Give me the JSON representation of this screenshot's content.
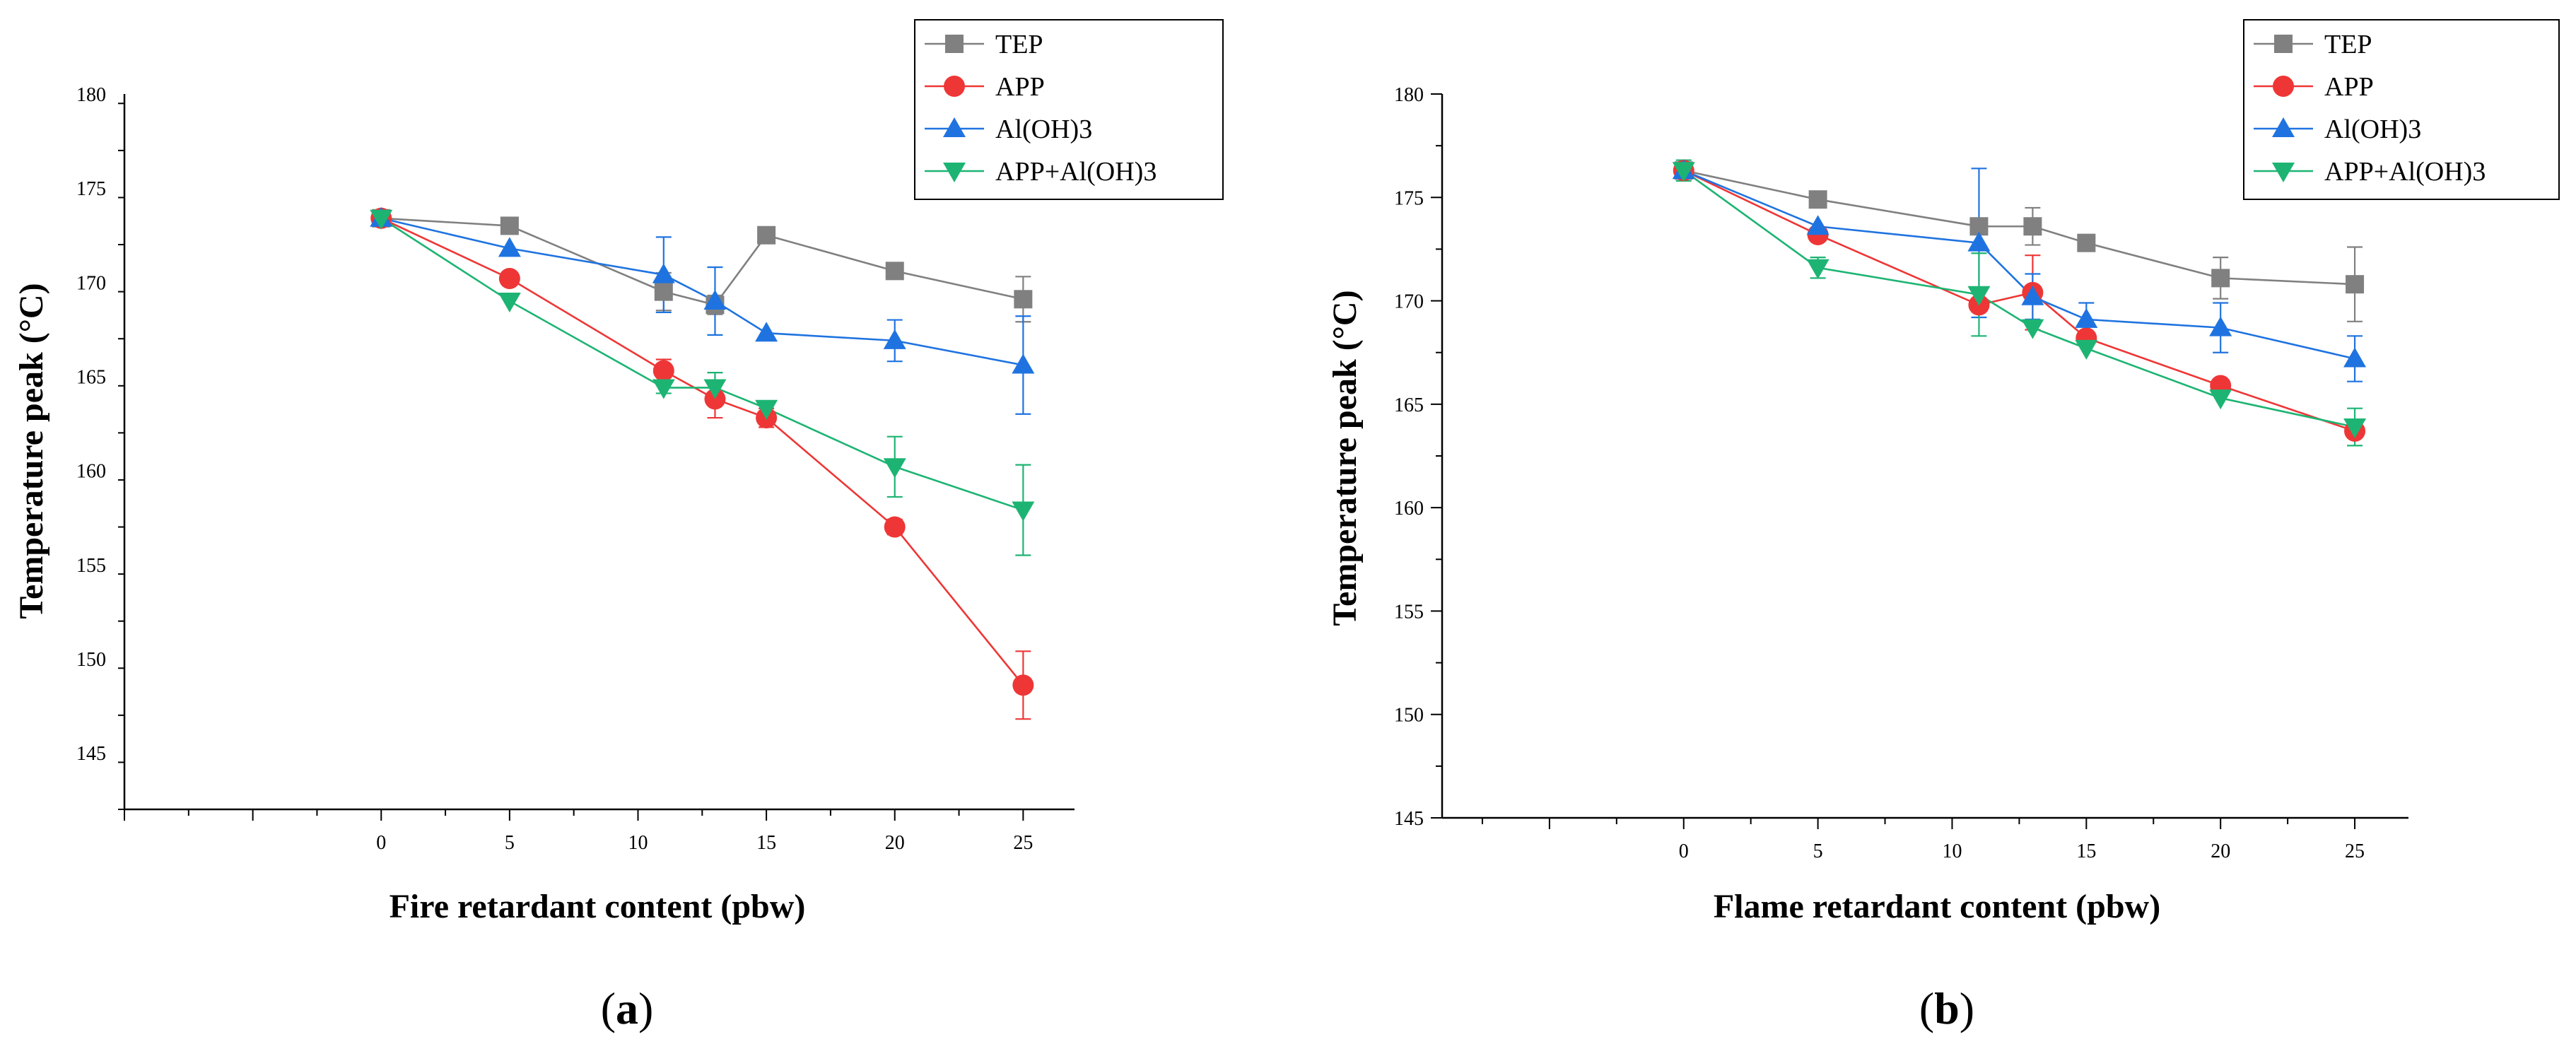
{
  "figure": {
    "panels": [
      {
        "letter": "a",
        "label_open": "(",
        "label_close": ")"
      },
      {
        "letter": "b",
        "label_open": "(",
        "label_close": ")"
      }
    ]
  },
  "series_style": [
    {
      "name": "TEP",
      "color": "#808080",
      "marker": "square"
    },
    {
      "name": "APP",
      "color": "#ee3636",
      "marker": "circle"
    },
    {
      "name": "Al(OH)3",
      "color": "#1f73e0",
      "marker": "triangle-up"
    },
    {
      "name": "APP+Al(OH)3",
      "color": "#1db473",
      "marker": "triangle-down"
    }
  ],
  "chart_data": [
    {
      "type": "line",
      "title": "",
      "xlabel": "Fire retardant content (pbw)",
      "ylabel": "Temperature peak (°C)",
      "xlim": [
        -10,
        27
      ],
      "ylim": [
        142,
        180
      ],
      "xticks": [
        0,
        5,
        10,
        15,
        20,
        25
      ],
      "yticks": [
        145,
        150,
        155,
        160,
        165,
        170,
        175,
        180
      ],
      "x": [
        0,
        5,
        11,
        13,
        15,
        20,
        25
      ],
      "legend_position": "top-right",
      "series": [
        {
          "name": "TEP",
          "values": [
            173.4,
            173.0,
            169.5,
            168.8,
            172.5,
            170.6,
            169.1
          ],
          "errors": [
            0,
            0,
            1.0,
            0.5,
            0,
            0,
            1.2
          ]
        },
        {
          "name": "APP",
          "values": [
            173.4,
            170.2,
            165.3,
            163.8,
            162.8,
            157.0,
            148.6
          ],
          "errors": [
            0,
            0,
            0.6,
            1.0,
            0.5,
            0.4,
            1.8
          ]
        },
        {
          "name": "Al(OH)3",
          "values": [
            173.4,
            171.8,
            170.4,
            169.0,
            167.3,
            166.9,
            165.6
          ],
          "errors": [
            0,
            0,
            2.0,
            1.8,
            0,
            1.1,
            2.6
          ]
        },
        {
          "name": "APP+Al(OH)3",
          "values": [
            173.4,
            169.0,
            164.4,
            164.4,
            163.3,
            160.2,
            157.9
          ],
          "errors": [
            0,
            0,
            0.3,
            0.8,
            0,
            1.6,
            2.4
          ]
        }
      ]
    },
    {
      "type": "line",
      "title": "",
      "xlabel": "Flame retardant content (pbw)",
      "ylabel": "Temperature peak (°C)",
      "xlim": [
        -9,
        27
      ],
      "ylim": [
        145,
        180
      ],
      "xticks": [
        0,
        5,
        10,
        15,
        20,
        25
      ],
      "yticks": [
        145,
        150,
        155,
        160,
        165,
        170,
        175,
        180
      ],
      "x": [
        0,
        5,
        11,
        13,
        15,
        20,
        25
      ],
      "legend_position": "top-right",
      "series": [
        {
          "name": "TEP",
          "values": [
            176.3,
            174.9,
            173.6,
            173.6,
            172.8,
            171.1,
            170.8
          ],
          "errors": [
            0,
            0,
            0,
            0.9,
            0,
            1.0,
            1.8
          ]
        },
        {
          "name": "APP",
          "values": [
            176.3,
            173.2,
            169.8,
            170.4,
            168.2,
            165.9,
            163.7
          ],
          "errors": [
            0,
            0,
            0,
            1.8,
            0,
            0,
            0
          ]
        },
        {
          "name": "Al(OH)3",
          "values": [
            176.3,
            173.6,
            172.8,
            170.2,
            169.1,
            168.7,
            167.2
          ],
          "errors": [
            0.4,
            0,
            3.6,
            1.1,
            0.8,
            1.2,
            1.1
          ]
        },
        {
          "name": "APP+Al(OH)3",
          "values": [
            176.3,
            171.6,
            170.3,
            168.7,
            167.7,
            165.3,
            163.9
          ],
          "errors": [
            0.5,
            0.5,
            2.0,
            0,
            0,
            0,
            0.9
          ]
        }
      ]
    }
  ]
}
